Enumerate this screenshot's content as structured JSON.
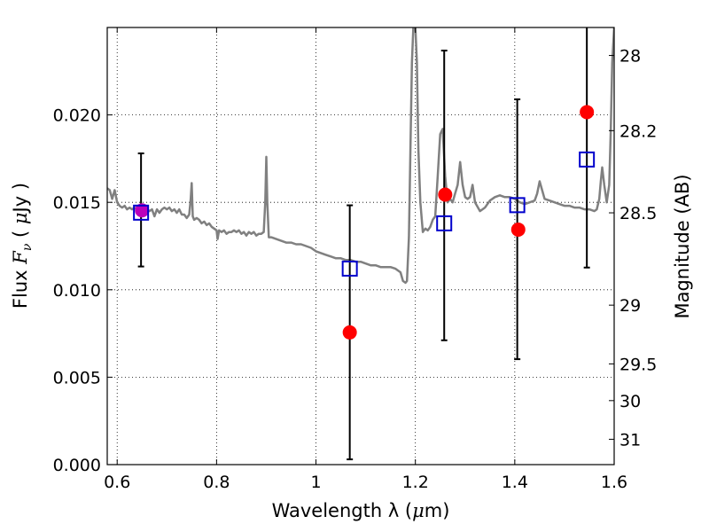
{
  "chart_data": {
    "type": "scatter",
    "xlabel_text": "Wavelength  λ (",
    "xlabel_mu": "μ",
    "xlabel_unit": "m)",
    "ylabel_text": "Flux ",
    "ylabel_var": "F",
    "ylabel_sub": "ν",
    "ylabel_unit_open": "  ( ",
    "ylabel_mu": "μ",
    "ylabel_unit_close": "Jy )",
    "y2label": "Magnitude (AB)",
    "xlim": [
      0.58,
      1.6
    ],
    "ylim": [
      0.0,
      0.025
    ],
    "grid": true,
    "x_ticks": [
      {
        "value": 0.6,
        "label": "0.6"
      },
      {
        "value": 0.8,
        "label": "0.8"
      },
      {
        "value": 1.0,
        "label": "1"
      },
      {
        "value": 1.2,
        "label": "1.2"
      },
      {
        "value": 1.4,
        "label": "1.4"
      },
      {
        "value": 1.6,
        "label": "1.6"
      }
    ],
    "y_ticks": [
      {
        "value": 0.0,
        "label": "0.000"
      },
      {
        "value": 0.005,
        "label": "0.005"
      },
      {
        "value": 0.01,
        "label": "0.010"
      },
      {
        "value": 0.015,
        "label": "0.015"
      },
      {
        "value": 0.02,
        "label": "0.020"
      }
    ],
    "y2_ticks": [
      {
        "flux": 0.0234,
        "label": "28"
      },
      {
        "flux": 0.0191,
        "label": "28.2"
      },
      {
        "flux": 0.0144,
        "label": "28.5"
      },
      {
        "flux": 0.00912,
        "label": "29"
      },
      {
        "flux": 0.00576,
        "label": "29.5"
      },
      {
        "flux": 0.00366,
        "label": "30"
      },
      {
        "flux": 0.00145,
        "label": "31"
      }
    ],
    "series": [
      {
        "kind": "line",
        "color": "#808080",
        "points": [
          [
            0.58,
            0.0158
          ],
          [
            0.585,
            0.0157
          ],
          [
            0.59,
            0.0152
          ],
          [
            0.595,
            0.0157
          ],
          [
            0.6,
            0.015
          ],
          [
            0.605,
            0.0148
          ],
          [
            0.61,
            0.0147
          ],
          [
            0.615,
            0.0148
          ],
          [
            0.62,
            0.0146
          ],
          [
            0.625,
            0.0147
          ],
          [
            0.63,
            0.0146
          ],
          [
            0.635,
            0.0147
          ],
          [
            0.64,
            0.0146
          ],
          [
            0.645,
            0.0147
          ],
          [
            0.65,
            0.0146
          ],
          [
            0.655,
            0.0146
          ],
          [
            0.66,
            0.0146
          ],
          [
            0.665,
            0.0145
          ],
          [
            0.67,
            0.0146
          ],
          [
            0.675,
            0.0142
          ],
          [
            0.68,
            0.0146
          ],
          [
            0.685,
            0.0144
          ],
          [
            0.69,
            0.0146
          ],
          [
            0.695,
            0.0147
          ],
          [
            0.7,
            0.0146
          ],
          [
            0.705,
            0.0147
          ],
          [
            0.71,
            0.0145
          ],
          [
            0.715,
            0.0146
          ],
          [
            0.72,
            0.0144
          ],
          [
            0.725,
            0.0146
          ],
          [
            0.73,
            0.0143
          ],
          [
            0.735,
            0.0143
          ],
          [
            0.74,
            0.0141
          ],
          [
            0.745,
            0.0143
          ],
          [
            0.748,
            0.0152
          ],
          [
            0.75,
            0.0161
          ],
          [
            0.752,
            0.0142
          ],
          [
            0.755,
            0.014
          ],
          [
            0.76,
            0.0141
          ],
          [
            0.765,
            0.014
          ],
          [
            0.77,
            0.0138
          ],
          [
            0.775,
            0.0139
          ],
          [
            0.78,
            0.0137
          ],
          [
            0.785,
            0.0138
          ],
          [
            0.79,
            0.0136
          ],
          [
            0.795,
            0.0135
          ],
          [
            0.8,
            0.0134
          ],
          [
            0.802,
            0.0129
          ],
          [
            0.805,
            0.0134
          ],
          [
            0.81,
            0.0133
          ],
          [
            0.815,
            0.0134
          ],
          [
            0.82,
            0.0132
          ],
          [
            0.825,
            0.0133
          ],
          [
            0.83,
            0.0133
          ],
          [
            0.835,
            0.0134
          ],
          [
            0.84,
            0.0133
          ],
          [
            0.845,
            0.0134
          ],
          [
            0.85,
            0.0132
          ],
          [
            0.855,
            0.0133
          ],
          [
            0.86,
            0.0131
          ],
          [
            0.865,
            0.0133
          ],
          [
            0.87,
            0.0132
          ],
          [
            0.875,
            0.0133
          ],
          [
            0.88,
            0.0131
          ],
          [
            0.885,
            0.0132
          ],
          [
            0.89,
            0.0132
          ],
          [
            0.895,
            0.0133
          ],
          [
            0.898,
            0.015
          ],
          [
            0.9,
            0.0176
          ],
          [
            0.902,
            0.015
          ],
          [
            0.905,
            0.013
          ],
          [
            0.91,
            0.013
          ],
          [
            0.92,
            0.0129
          ],
          [
            0.93,
            0.0128
          ],
          [
            0.94,
            0.0127
          ],
          [
            0.95,
            0.0127
          ],
          [
            0.96,
            0.0126
          ],
          [
            0.97,
            0.0126
          ],
          [
            0.98,
            0.0125
          ],
          [
            0.99,
            0.0124
          ],
          [
            1.0,
            0.0122
          ],
          [
            1.01,
            0.0121
          ],
          [
            1.02,
            0.012
          ],
          [
            1.03,
            0.0119
          ],
          [
            1.04,
            0.0118
          ],
          [
            1.05,
            0.0118
          ],
          [
            1.06,
            0.0117
          ],
          [
            1.07,
            0.0117
          ],
          [
            1.08,
            0.0116
          ],
          [
            1.09,
            0.0116
          ],
          [
            1.1,
            0.0115
          ],
          [
            1.11,
            0.0114
          ],
          [
            1.12,
            0.0114
          ],
          [
            1.13,
            0.0113
          ],
          [
            1.14,
            0.0113
          ],
          [
            1.15,
            0.0113
          ],
          [
            1.16,
            0.0112
          ],
          [
            1.165,
            0.0111
          ],
          [
            1.17,
            0.011
          ],
          [
            1.175,
            0.0105
          ],
          [
            1.18,
            0.0104
          ],
          [
            1.183,
            0.0105
          ],
          [
            1.187,
            0.013
          ],
          [
            1.19,
            0.018
          ],
          [
            1.193,
            0.023
          ],
          [
            1.196,
            0.025
          ],
          [
            1.2,
            0.025
          ],
          [
            1.203,
            0.023
          ],
          [
            1.206,
            0.018
          ],
          [
            1.21,
            0.015
          ],
          [
            1.215,
            0.0133
          ],
          [
            1.22,
            0.0135
          ],
          [
            1.225,
            0.0134
          ],
          [
            1.23,
            0.0136
          ],
          [
            1.235,
            0.014
          ],
          [
            1.24,
            0.0142
          ],
          [
            1.245,
            0.0165
          ],
          [
            1.25,
            0.0189
          ],
          [
            1.255,
            0.0192
          ],
          [
            1.26,
            0.0165
          ],
          [
            1.265,
            0.015
          ],
          [
            1.27,
            0.0152
          ],
          [
            1.275,
            0.015
          ],
          [
            1.28,
            0.0155
          ],
          [
            1.285,
            0.016
          ],
          [
            1.29,
            0.0173
          ],
          [
            1.295,
            0.016
          ],
          [
            1.3,
            0.0153
          ],
          [
            1.305,
            0.0152
          ],
          [
            1.31,
            0.0153
          ],
          [
            1.315,
            0.016
          ],
          [
            1.32,
            0.015
          ],
          [
            1.33,
            0.0145
          ],
          [
            1.34,
            0.0147
          ],
          [
            1.35,
            0.0151
          ],
          [
            1.36,
            0.0153
          ],
          [
            1.37,
            0.0154
          ],
          [
            1.38,
            0.0153
          ],
          [
            1.39,
            0.0153
          ],
          [
            1.4,
            0.0152
          ],
          [
            1.41,
            0.015
          ],
          [
            1.42,
            0.0149
          ],
          [
            1.43,
            0.015
          ],
          [
            1.44,
            0.0151
          ],
          [
            1.445,
            0.0155
          ],
          [
            1.45,
            0.0162
          ],
          [
            1.455,
            0.0157
          ],
          [
            1.46,
            0.0152
          ],
          [
            1.47,
            0.0151
          ],
          [
            1.48,
            0.015
          ],
          [
            1.49,
            0.0149
          ],
          [
            1.5,
            0.0148
          ],
          [
            1.51,
            0.0148
          ],
          [
            1.52,
            0.0147
          ],
          [
            1.53,
            0.0147
          ],
          [
            1.54,
            0.0146
          ],
          [
            1.55,
            0.0146
          ],
          [
            1.56,
            0.0145
          ],
          [
            1.565,
            0.0146
          ],
          [
            1.57,
            0.0152
          ],
          [
            1.573,
            0.0162
          ],
          [
            1.576,
            0.017
          ],
          [
            1.58,
            0.016
          ],
          [
            1.585,
            0.015
          ],
          [
            1.59,
            0.016
          ],
          [
            1.593,
            0.019
          ],
          [
            1.596,
            0.023
          ],
          [
            1.6,
            0.025
          ]
        ]
      },
      {
        "kind": "errorbar",
        "color": "#000000",
        "points": [
          {
            "x": 0.648,
            "low": 0.01133,
            "high": 0.0178
          },
          {
            "x": 1.068,
            "low": 0.0003,
            "high": 0.01483
          },
          {
            "x": 1.258,
            "low": 0.00711,
            "high": 0.02368
          },
          {
            "x": 1.405,
            "low": 0.00603,
            "high": 0.02089
          },
          {
            "x": 1.545,
            "low": 0.01127,
            "high": 0.025
          }
        ]
      },
      {
        "kind": "scatter",
        "marker": "circle",
        "color": "#ff0000",
        "points": [
          {
            "x": 0.65,
            "y": 0.01454,
            "color": "#bb00bb"
          },
          {
            "x": 1.068,
            "y": 0.00756
          },
          {
            "x": 1.26,
            "y": 0.01544
          },
          {
            "x": 1.407,
            "y": 0.01344
          },
          {
            "x": 1.545,
            "y": 0.02016
          }
        ]
      },
      {
        "kind": "scatter",
        "marker": "square",
        "color": "#0000cc",
        "points": [
          {
            "x": 0.648,
            "y": 0.01441
          },
          {
            "x": 1.068,
            "y": 0.01121
          },
          {
            "x": 1.258,
            "y": 0.0138
          },
          {
            "x": 1.405,
            "y": 0.01484
          },
          {
            "x": 1.545,
            "y": 0.01745
          }
        ]
      }
    ]
  }
}
